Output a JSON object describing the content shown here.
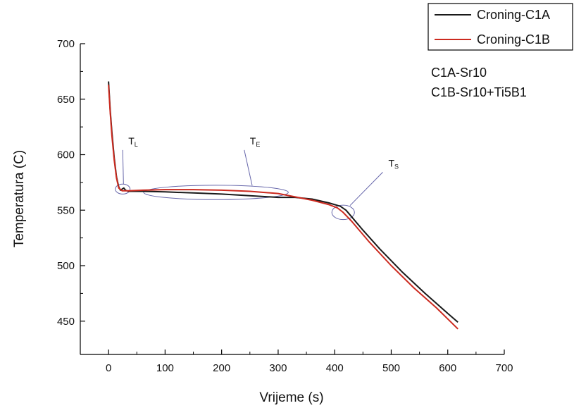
{
  "chart_data": {
    "type": "line",
    "title": "",
    "xlabel": "Vrijeme (s)",
    "ylabel": "Temperatura (C)",
    "xlim": [
      -50,
      700
    ],
    "ylim": [
      420,
      700
    ],
    "xticks": [
      0,
      100,
      200,
      300,
      400,
      500,
      600,
      700
    ],
    "yticks": [
      450,
      500,
      550,
      600,
      650,
      700
    ],
    "x_tick_labels": [
      "0",
      "100",
      "200",
      "300",
      "400",
      "500",
      "600",
      "700"
    ],
    "y_tick_labels": [
      "450",
      "500",
      "550",
      "600",
      "650",
      "700"
    ],
    "legend_position": "top-right",
    "grid": false,
    "series": [
      {
        "name": "Croning-C1A",
        "color": "#1a1a1a",
        "points": [
          [
            0,
            666
          ],
          [
            3,
            640
          ],
          [
            6,
            620
          ],
          [
            10,
            597
          ],
          [
            14,
            580
          ],
          [
            18,
            571
          ],
          [
            21,
            568
          ],
          [
            24,
            569
          ],
          [
            27,
            570
          ],
          [
            30,
            568
          ],
          [
            35,
            567
          ],
          [
            45,
            567
          ],
          [
            60,
            567
          ],
          [
            100,
            566.5
          ],
          [
            150,
            565.5
          ],
          [
            200,
            564.5
          ],
          [
            250,
            563
          ],
          [
            300,
            561.5
          ],
          [
            330,
            561.5
          ],
          [
            360,
            560
          ],
          [
            390,
            556.5
          ],
          [
            410,
            553.5
          ],
          [
            420,
            550
          ],
          [
            430,
            544
          ],
          [
            450,
            532
          ],
          [
            480,
            515
          ],
          [
            520,
            494
          ],
          [
            560,
            475
          ],
          [
            600,
            457
          ],
          [
            618,
            449
          ]
        ]
      },
      {
        "name": "Croning-C1B",
        "color": "#cc2a1f",
        "points": [
          [
            0,
            663
          ],
          [
            3,
            638
          ],
          [
            6,
            617
          ],
          [
            10,
            595
          ],
          [
            14,
            579
          ],
          [
            18,
            570
          ],
          [
            24,
            567.5
          ],
          [
            35,
            567.5
          ],
          [
            60,
            568
          ],
          [
            100,
            568.5
          ],
          [
            150,
            568.5
          ],
          [
            200,
            568
          ],
          [
            250,
            567
          ],
          [
            300,
            565
          ],
          [
            330,
            562
          ],
          [
            360,
            559
          ],
          [
            390,
            555
          ],
          [
            405,
            552
          ],
          [
            415,
            548
          ],
          [
            430,
            540
          ],
          [
            460,
            522
          ],
          [
            500,
            500
          ],
          [
            540,
            480
          ],
          [
            580,
            462
          ],
          [
            618,
            443
          ]
        ]
      }
    ],
    "annotations": [
      {
        "label": "T",
        "sub": "L",
        "x": 25,
        "y": 569,
        "rx": 13,
        "ry": 4.5,
        "tx": 35,
        "ty": 608
      },
      {
        "label": "T",
        "sub": "E",
        "x": 190,
        "y": 566,
        "rx": 128,
        "ry": 6.5,
        "tx": 250,
        "ty": 608
      },
      {
        "label": "T",
        "sub": "S",
        "x": 415,
        "y": 548,
        "rx": 20,
        "ry": 6.5,
        "tx": 495,
        "ty": 588
      }
    ],
    "notes": [
      "C1A-Sr10",
      "C1B-Sr10+Ti5B1"
    ],
    "annotation_color": "#6666aa"
  }
}
